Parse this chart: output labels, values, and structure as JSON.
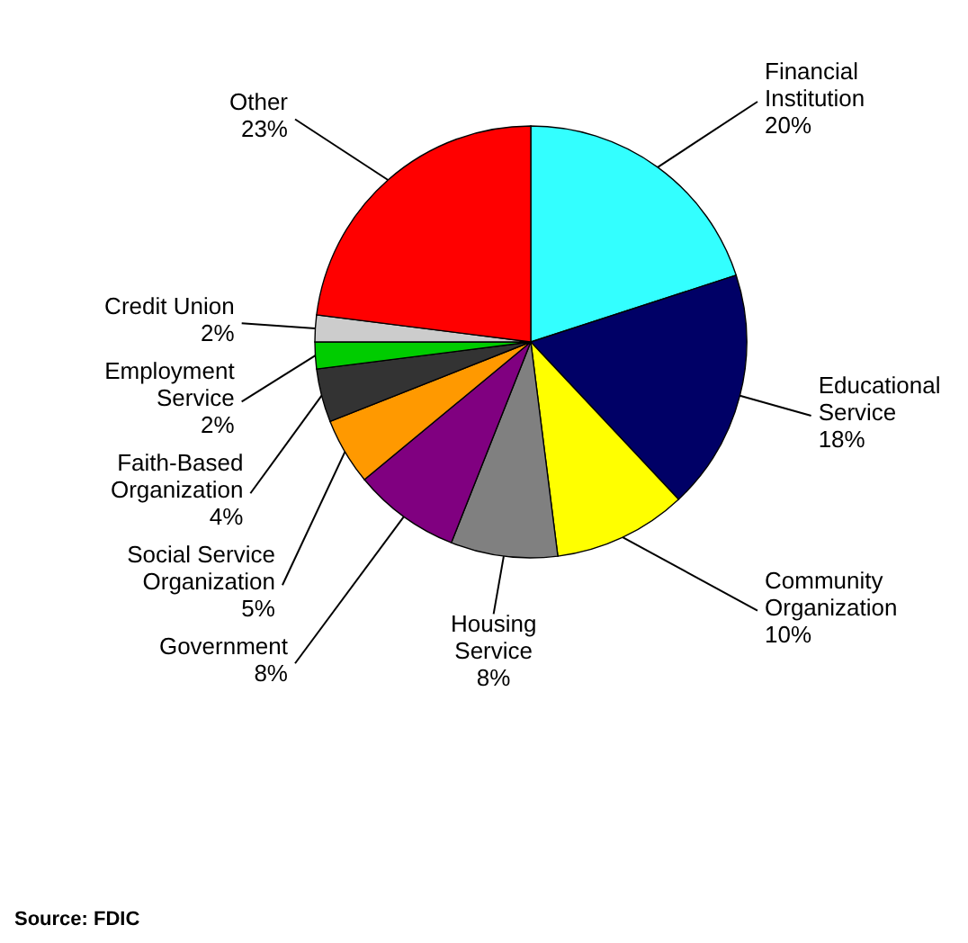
{
  "chart_data": {
    "type": "pie",
    "categories": [
      "Financial Institution",
      "Educational Service",
      "Community Organization",
      "Housing Service",
      "Government",
      "Social Service Organization",
      "Faith-Based Organization",
      "Employment Service",
      "Credit Union",
      "Other"
    ],
    "values": [
      20,
      18,
      10,
      8,
      8,
      5,
      4,
      2,
      2,
      23
    ],
    "value_labels": [
      "20%",
      "18%",
      "10%",
      "8%",
      "8%",
      "5%",
      "4%",
      "2%",
      "2%",
      "23%"
    ],
    "colors": [
      "#33ffff",
      "#000066",
      "#ffff00",
      "#808080",
      "#800080",
      "#ff9900",
      "#333333",
      "#00cc00",
      "#cccccc",
      "#ff0000"
    ],
    "annotations": [
      "Source: FDIC"
    ]
  }
}
